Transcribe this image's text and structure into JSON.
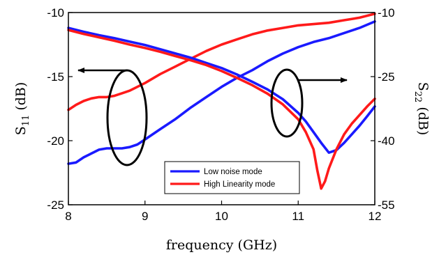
{
  "chart_data": {
    "type": "line",
    "x": {
      "label": "frequency (GHz)",
      "range": [
        8,
        12
      ],
      "ticks": [
        8,
        9,
        10,
        11,
        12
      ]
    },
    "y_left": {
      "label_main": "S",
      "label_sub": "11",
      "label_unit": " (dB)",
      "range": [
        -25,
        -10
      ],
      "ticks": [
        -25,
        -20,
        -15,
        -10
      ]
    },
    "y_right": {
      "label_main": "S",
      "label_sub": "22",
      "label_unit": " (dB)",
      "range": [
        -55,
        -10
      ],
      "ticks": [
        -55,
        -40,
        -25,
        -10
      ]
    },
    "grid": false,
    "legend": {
      "position": "bottom-center",
      "entries": [
        {
          "name": "Low noise mode",
          "color": "#1a1aff"
        },
        {
          "name": "High Linearity mode",
          "color": "#ff1a1a"
        }
      ]
    },
    "annotations": [
      {
        "type": "ellipse-arrow",
        "points_to": "left-axis",
        "series": "S11"
      },
      {
        "type": "ellipse-arrow",
        "points_to": "right-axis",
        "series": "S22"
      }
    ],
    "series": [
      {
        "name": "Low noise mode",
        "metric": "S11",
        "axis": "left",
        "color": "#1a1aff",
        "x": [
          8.0,
          8.1,
          8.2,
          8.3,
          8.4,
          8.5,
          8.6,
          8.7,
          8.8,
          8.9,
          9.0,
          9.2,
          9.4,
          9.6,
          9.8,
          10.0,
          10.2,
          10.4,
          10.6,
          10.8,
          11.0,
          11.2,
          11.4,
          11.6,
          11.8,
          12.0
        ],
        "values": [
          -21.8,
          -21.7,
          -21.3,
          -21.0,
          -20.7,
          -20.6,
          -20.6,
          -20.6,
          -20.5,
          -20.3,
          -19.9,
          -19.1,
          -18.3,
          -17.4,
          -16.6,
          -15.8,
          -15.1,
          -14.5,
          -13.8,
          -13.2,
          -12.7,
          -12.3,
          -12.0,
          -11.6,
          -11.2,
          -10.7
        ]
      },
      {
        "name": "High Linearity mode",
        "metric": "S11",
        "axis": "left",
        "color": "#ff1a1a",
        "x": [
          8.0,
          8.1,
          8.2,
          8.3,
          8.4,
          8.5,
          8.6,
          8.7,
          8.8,
          8.9,
          9.0,
          9.2,
          9.4,
          9.6,
          9.8,
          10.0,
          10.2,
          10.4,
          10.6,
          10.8,
          11.0,
          11.2,
          11.4,
          11.6,
          11.8,
          12.0
        ],
        "values": [
          -17.6,
          -17.2,
          -16.9,
          -16.7,
          -16.6,
          -16.6,
          -16.5,
          -16.3,
          -16.1,
          -15.8,
          -15.5,
          -14.8,
          -14.2,
          -13.6,
          -13.0,
          -12.5,
          -12.1,
          -11.7,
          -11.4,
          -11.2,
          -11.0,
          -10.9,
          -10.8,
          -10.6,
          -10.4,
          -10.1
        ]
      },
      {
        "name": "Low noise mode",
        "metric": "S22",
        "axis": "right",
        "color": "#1a1aff",
        "x": [
          8.0,
          8.2,
          8.4,
          8.6,
          8.8,
          9.0,
          9.2,
          9.4,
          9.6,
          9.8,
          10.0,
          10.2,
          10.4,
          10.6,
          10.8,
          11.0,
          11.1,
          11.2,
          11.3,
          11.4,
          11.5,
          11.6,
          11.7,
          11.8,
          11.9,
          12.0
        ],
        "values": [
          -13.6,
          -14.5,
          -15.3,
          -16.0,
          -16.8,
          -17.6,
          -18.6,
          -19.6,
          -20.6,
          -21.8,
          -23.0,
          -24.5,
          -26.2,
          -28.0,
          -30.3,
          -33.5,
          -35.5,
          -38.0,
          -40.5,
          -42.8,
          -42.2,
          -40.5,
          -38.5,
          -36.5,
          -34.3,
          -32.0
        ]
      },
      {
        "name": "High Linearity mode",
        "metric": "S22",
        "axis": "right",
        "color": "#ff1a1a",
        "x": [
          8.0,
          8.2,
          8.4,
          8.6,
          8.8,
          9.0,
          9.2,
          9.4,
          9.6,
          9.8,
          10.0,
          10.2,
          10.4,
          10.6,
          10.8,
          11.0,
          11.1,
          11.2,
          11.25,
          11.3,
          11.35,
          11.4,
          11.5,
          11.6,
          11.7,
          11.8,
          11.9,
          12.0
        ],
        "values": [
          -14.1,
          -15.0,
          -15.8,
          -16.6,
          -17.5,
          -18.3,
          -19.2,
          -20.2,
          -21.2,
          -22.3,
          -23.7,
          -25.3,
          -27.0,
          -29.0,
          -31.5,
          -35.0,
          -38.0,
          -42.0,
          -47.0,
          -51.2,
          -49.5,
          -46.5,
          -42.0,
          -38.5,
          -36.0,
          -34.0,
          -32.0,
          -30.2
        ]
      }
    ]
  }
}
